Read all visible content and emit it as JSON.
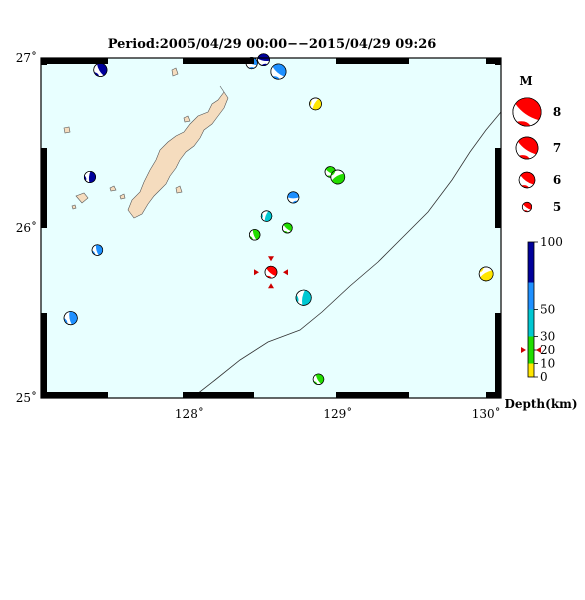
{
  "title": "Period:2005/04/29 00:00−−2015/04/29 09:26",
  "map": {
    "lon_range": [
      127.0,
      130.1
    ],
    "lat_range": [
      25.0,
      27.0
    ],
    "lat_ticks": [
      {
        "value": 27,
        "label": "27˚"
      },
      {
        "value": 26,
        "label": "26˚"
      },
      {
        "value": 25,
        "label": "25˚"
      }
    ],
    "lon_ticks": [
      {
        "value": 128,
        "label": "128˚"
      },
      {
        "value": 129,
        "label": "129˚"
      },
      {
        "value": 130,
        "label": "130˚"
      }
    ],
    "colors": {
      "sea": "#e8ffff",
      "land": "#f5dcbe",
      "trench": "#333333",
      "frame": "#000000"
    }
  },
  "depth_scale": {
    "label": "Depth(km)",
    "ticks": [
      "100",
      "50",
      "30",
      "20",
      "10",
      "0"
    ],
    "tick_values": [
      100,
      50,
      30,
      20,
      10,
      0
    ],
    "bands": [
      {
        "from": 0,
        "to": 10,
        "color": "#ffe600"
      },
      {
        "from": 10,
        "to": 30,
        "color": "#22dd00"
      },
      {
        "from": 30,
        "to": 50,
        "color": "#00c8d2"
      },
      {
        "from": 50,
        "to": 70,
        "color": "#1e90ff"
      },
      {
        "from": 70,
        "to": 100,
        "color": "#00009b"
      }
    ]
  },
  "magnitude_legend": {
    "label": "M",
    "entries": [
      "8",
      "7",
      "6",
      "5"
    ],
    "values": [
      8,
      7,
      6,
      5
    ],
    "color": "#ff0000"
  },
  "events": [
    {
      "lon": 127.4,
      "lat": 26.93,
      "mag": 5.5,
      "depth_color": "#00009b",
      "rot": 60
    },
    {
      "lon": 128.42,
      "lat": 26.97,
      "mag": 5.2,
      "depth_color": "#1e90ff",
      "rot": 20
    },
    {
      "lon": 128.5,
      "lat": 26.99,
      "mag": 5.3,
      "depth_color": "#00009b",
      "rot": 10
    },
    {
      "lon": 128.6,
      "lat": 26.92,
      "mag": 5.8,
      "depth_color": "#1e90ff",
      "rot": 40
    },
    {
      "lon": 128.85,
      "lat": 26.73,
      "mag": 5.3,
      "depth_color": "#ffe600",
      "rot": 120
    },
    {
      "lon": 127.33,
      "lat": 26.3,
      "mag": 5.2,
      "depth_color": "#00009b",
      "rot": 95
    },
    {
      "lon": 128.95,
      "lat": 26.33,
      "mag": 5.1,
      "depth_color": "#22dd00",
      "rot": 30
    },
    {
      "lon": 129.0,
      "lat": 26.3,
      "mag": 5.6,
      "depth_color": "#22dd00",
      "rot": 150
    },
    {
      "lon": 128.7,
      "lat": 26.18,
      "mag": 5.2,
      "depth_color": "#1e90ff",
      "rot": 0
    },
    {
      "lon": 128.52,
      "lat": 26.07,
      "mag": 5.1,
      "depth_color": "#00c8d2",
      "rot": 110
    },
    {
      "lon": 128.44,
      "lat": 25.96,
      "mag": 5.1,
      "depth_color": "#22dd00",
      "rot": 70
    },
    {
      "lon": 128.66,
      "lat": 26.0,
      "mag": 5.0,
      "depth_color": "#22dd00",
      "rot": 40
    },
    {
      "lon": 127.38,
      "lat": 25.87,
      "mag": 5.1,
      "depth_color": "#1e90ff",
      "rot": 75
    },
    {
      "lon": 130.0,
      "lat": 25.73,
      "mag": 5.6,
      "depth_color": "#ffe600",
      "rot": 150
    },
    {
      "lon": 128.55,
      "lat": 25.74,
      "mag": 5.3,
      "depth_color": "#ff0000",
      "rot": 40
    },
    {
      "lon": 128.77,
      "lat": 25.59,
      "mag": 5.8,
      "depth_color": "#00c8d2",
      "rot": 100
    },
    {
      "lon": 127.2,
      "lat": 25.47,
      "mag": 5.5,
      "depth_color": "#1e90ff",
      "rot": 80
    },
    {
      "lon": 128.87,
      "lat": 25.11,
      "mag": 5.1,
      "depth_color": "#22dd00",
      "rot": 60
    }
  ],
  "highlighted_event": {
    "lon": 128.55,
    "lat": 25.74,
    "depth": 20
  }
}
